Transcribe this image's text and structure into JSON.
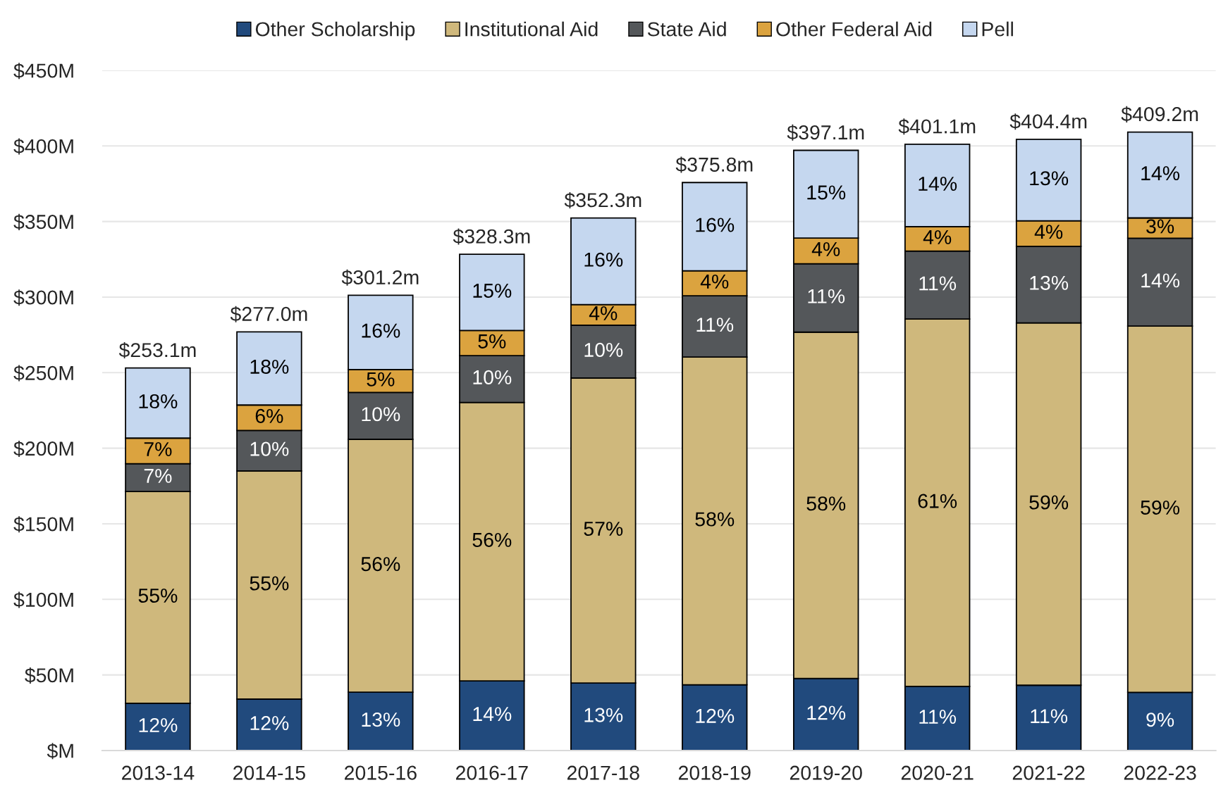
{
  "chart_data": {
    "type": "bar",
    "stacked": true,
    "categories": [
      "2013-14",
      "2014-15",
      "2015-16",
      "2016-17",
      "2017-18",
      "2018-19",
      "2019-20",
      "2020-21",
      "2021-22",
      "2022-23"
    ],
    "series": [
      {
        "name": "Other Scholarship",
        "color": "#214a7d",
        "values": [
          31.3,
          34.0,
          38.6,
          46.1,
          44.7,
          43.5,
          47.7,
          42.4,
          43.2,
          38.5
        ]
      },
      {
        "name": "Institutional Aid",
        "color": "#cfb87c",
        "values": [
          140.1,
          151.0,
          167.3,
          184.2,
          201.8,
          216.8,
          229.1,
          243.1,
          239.7,
          242.3
        ]
      },
      {
        "name": "State Aid",
        "color": "#54575a",
        "values": [
          18.4,
          26.8,
          31.0,
          31.0,
          34.9,
          40.6,
          45.3,
          44.9,
          50.7,
          58.1
        ]
      },
      {
        "name": "Other Federal Aid",
        "color": "#dba33f",
        "values": [
          16.9,
          16.8,
          15.2,
          16.6,
          13.6,
          16.5,
          17.0,
          16.2,
          16.9,
          13.5
        ]
      },
      {
        "name": "Pell",
        "color": "#c5d7ef",
        "values": [
          46.4,
          48.4,
          49.1,
          50.4,
          57.3,
          58.4,
          58.0,
          54.5,
          53.9,
          56.8
        ]
      }
    ],
    "totals": [
      "$253.1m",
      "$277.0m",
      "$301.2m",
      "$328.3m",
      "$352.3m",
      "$375.8m",
      "$397.1m",
      "$401.1m",
      "$404.4m",
      "$409.2m"
    ],
    "annotations": [
      "12%",
      "55%",
      "7%",
      "7%",
      "18%",
      "12%",
      "55%",
      "10%",
      "6%",
      "18%",
      "13%",
      "56%",
      "10%",
      "5%",
      "16%",
      "14%",
      "56%",
      "10%",
      "5%",
      "15%",
      "13%",
      "57%",
      "10%",
      "4%",
      "16%",
      "12%",
      "58%",
      "11%",
      "4%",
      "16%",
      "12%",
      "58%",
      "11%",
      "4%",
      "15%",
      "11%",
      "61%",
      "11%",
      "4%",
      "14%",
      "11%",
      "59%",
      "13%",
      "4%",
      "13%",
      "9%",
      "59%",
      "14%",
      "3%",
      "14%"
    ],
    "ylim": [
      0,
      450
    ],
    "yticks": [
      {
        "value": 0,
        "label": "$M"
      },
      {
        "value": 50,
        "label": "$50M"
      },
      {
        "value": 100,
        "label": "$100M"
      },
      {
        "value": 150,
        "label": "$150M"
      },
      {
        "value": 200,
        "label": "$200M"
      },
      {
        "value": 250,
        "label": "$250M"
      },
      {
        "value": 300,
        "label": "$300M"
      },
      {
        "value": 350,
        "label": "$350M"
      },
      {
        "value": 400,
        "label": "$400M"
      },
      {
        "value": 450,
        "label": "$450M"
      }
    ],
    "grid": "y",
    "legend": "top"
  }
}
